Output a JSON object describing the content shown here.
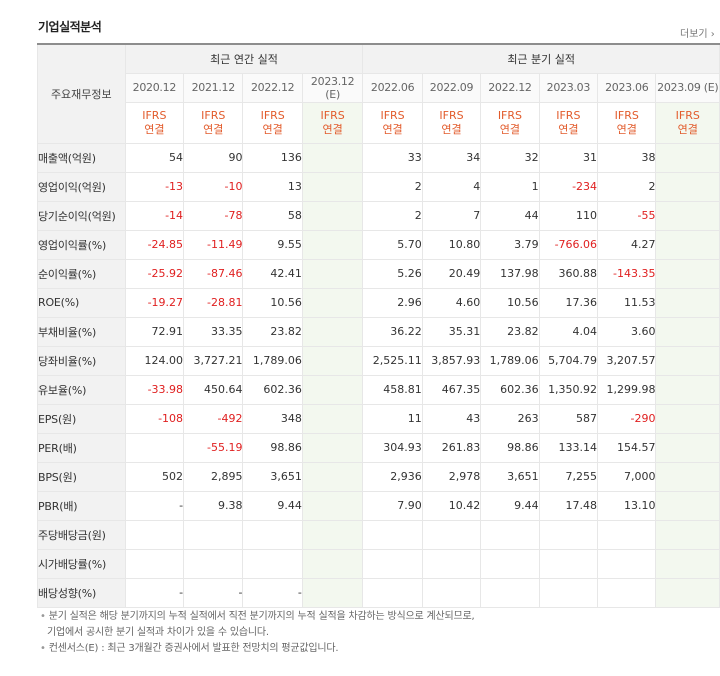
{
  "title": "기업실적분석",
  "more_label": "더보기",
  "header": {
    "corner": "주요재무정보",
    "annual_group": "최근 연간 실적",
    "quarter_group": "최근 분기 실적",
    "periods": [
      "2020.12",
      "2021.12",
      "2022.12",
      "2023.12 (E)",
      "2022.06",
      "2022.09",
      "2022.12",
      "2023.03",
      "2023.06",
      "2023.09 (E)"
    ],
    "ifrs_top": "IFRS",
    "ifrs_bottom": "연결"
  },
  "rows": [
    {
      "label": "매출액(억원)",
      "values": [
        "54",
        "90",
        "136",
        "",
        "33",
        "34",
        "32",
        "31",
        "38",
        ""
      ]
    },
    {
      "label": "영업이익(억원)",
      "values": [
        "-13",
        "-10",
        "13",
        "",
        "2",
        "4",
        "1",
        "-234",
        "2",
        ""
      ]
    },
    {
      "label": "당기순이익(억원)",
      "values": [
        "-14",
        "-78",
        "58",
        "",
        "2",
        "7",
        "44",
        "110",
        "-55",
        ""
      ]
    },
    {
      "label": "영업이익률(%)",
      "values": [
        "-24.85",
        "-11.49",
        "9.55",
        "",
        "5.70",
        "10.80",
        "3.79",
        "-766.06",
        "4.27",
        ""
      ]
    },
    {
      "label": "순이익률(%)",
      "values": [
        "-25.92",
        "-87.46",
        "42.41",
        "",
        "5.26",
        "20.49",
        "137.98",
        "360.88",
        "-143.35",
        ""
      ]
    },
    {
      "label": "ROE(%)",
      "values": [
        "-19.27",
        "-28.81",
        "10.56",
        "",
        "2.96",
        "4.60",
        "10.56",
        "17.36",
        "11.53",
        ""
      ]
    },
    {
      "label": "부채비율(%)",
      "values": [
        "72.91",
        "33.35",
        "23.82",
        "",
        "36.22",
        "35.31",
        "23.82",
        "4.04",
        "3.60",
        ""
      ]
    },
    {
      "label": "당좌비율(%)",
      "values": [
        "124.00",
        "3,727.21",
        "1,789.06",
        "",
        "2,525.11",
        "3,857.93",
        "1,789.06",
        "5,704.79",
        "3,207.57",
        ""
      ]
    },
    {
      "label": "유보율(%)",
      "values": [
        "-33.98",
        "450.64",
        "602.36",
        "",
        "458.81",
        "467.35",
        "602.36",
        "1,350.92",
        "1,299.98",
        ""
      ]
    },
    {
      "label": "EPS(원)",
      "values": [
        "-108",
        "-492",
        "348",
        "",
        "11",
        "43",
        "263",
        "587",
        "-290",
        ""
      ]
    },
    {
      "label": "PER(배)",
      "values": [
        "",
        "-55.19",
        "98.86",
        "",
        "304.93",
        "261.83",
        "98.86",
        "133.14",
        "154.57",
        ""
      ]
    },
    {
      "label": "BPS(원)",
      "values": [
        "502",
        "2,895",
        "3,651",
        "",
        "2,936",
        "2,978",
        "3,651",
        "7,255",
        "7,000",
        ""
      ]
    },
    {
      "label": "PBR(배)",
      "values": [
        "-",
        "9.38",
        "9.44",
        "",
        "7.90",
        "10.42",
        "9.44",
        "17.48",
        "13.10",
        ""
      ]
    },
    {
      "label": "주당배당금(원)",
      "values": [
        "",
        "",
        "",
        "",
        "",
        "",
        "",
        "",
        "",
        ""
      ]
    },
    {
      "label": "시가배당률(%)",
      "values": [
        "",
        "",
        "",
        "",
        "",
        "",
        "",
        "",
        "",
        ""
      ]
    },
    {
      "label": "배당성향(%)",
      "values": [
        "-",
        "-",
        "-",
        "",
        "",
        "",
        "",
        "",
        "",
        ""
      ]
    }
  ],
  "footnotes": [
    "분기 실적은 해당 분기까지의 누적 실적에서 직전 분기까지의 누적 실적을 차감하는 방식으로 계산되므로,",
    "기업에서 공시한 분기 실적과 차이가 있을 수 있습니다.",
    "컨센서스(E) : 최근 3개월간 증권사에서 발표한 전망치의 평균값입니다."
  ]
}
